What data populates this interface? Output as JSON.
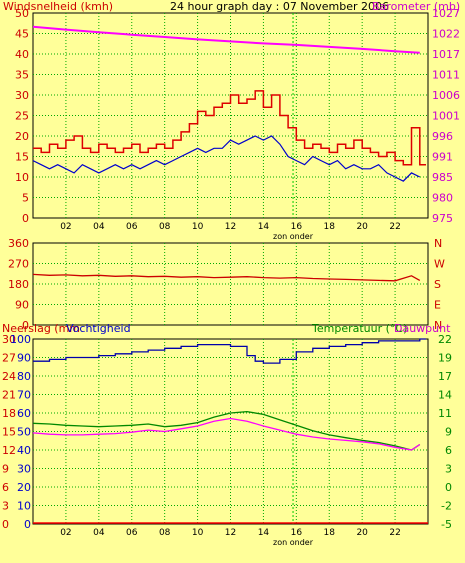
{
  "header": {
    "left_title": "Windsnelheid (kmh)",
    "center_title": "24 hour graph day : 07 November 2006",
    "right_title": "Barometer (mb)"
  },
  "colors": {
    "background": "#ffff99",
    "grid": "#00aa00",
    "wind": "#dd0000",
    "gust": "#0000cc",
    "barometer": "#ff00ff",
    "direction": "#cc0000",
    "humidity": "#0000aa",
    "temperature": "#008800",
    "dewpoint": "#ff00ff",
    "rain": "#ff0000",
    "sun": "#00cc00",
    "axis_text": "#cc0000",
    "baro_text": "#cc00cc"
  },
  "x_ticks": [
    "02",
    "04",
    "06",
    "08",
    "10",
    "12",
    "14",
    "16",
    "18",
    "20",
    "22"
  ],
  "zon_onder_label": "zon onder",
  "chart_data": [
    {
      "type": "line",
      "name": "wind",
      "title": "24 hour graph day : 07 November 2006",
      "ylabel": "Windsnelheid (kmh)",
      "y2label": "Barometer (mb)",
      "x_range": [
        0,
        24
      ],
      "ylim": [
        0,
        50
      ],
      "y_ticks": [
        0,
        5,
        10,
        15,
        20,
        25,
        30,
        35,
        40,
        45,
        50
      ],
      "y2lim": [
        975,
        1027
      ],
      "y2_ticks": [
        975,
        980,
        985,
        991,
        996,
        1001,
        1006,
        1011,
        1017,
        1022,
        1027
      ],
      "grid": true,
      "sun_marker_x": 15.8,
      "series": [
        {
          "axis": "left",
          "x": [
            0,
            0.5,
            1,
            1.5,
            2,
            2.5,
            3,
            3.5,
            4,
            4.5,
            5,
            5.5,
            6,
            6.5,
            7,
            7.5,
            8,
            8.5,
            9,
            9.5,
            10,
            10.5,
            11,
            11.5,
            12,
            12.5,
            13,
            13.5,
            14,
            14.5,
            15,
            15.5,
            16,
            16.5,
            17,
            17.5,
            18,
            18.5,
            19,
            19.5,
            20,
            20.5,
            21,
            21.5,
            22,
            22.5,
            23,
            23.5
          ],
          "values": [
            17,
            16,
            18,
            17,
            19,
            20,
            17,
            16,
            18,
            17,
            16,
            17,
            18,
            16,
            17,
            18,
            17,
            19,
            21,
            23,
            26,
            25,
            27,
            28,
            30,
            28,
            29,
            31,
            27,
            30,
            25,
            22,
            19,
            17,
            18,
            17,
            16,
            18,
            17,
            19,
            17,
            16,
            15,
            16,
            14,
            13,
            22,
            13
          ]
        },
        {
          "axis": "left",
          "x": [
            0,
            0.5,
            1,
            1.5,
            2,
            2.5,
            3,
            3.5,
            4,
            4.5,
            5,
            5.5,
            6,
            6.5,
            7,
            7.5,
            8,
            8.5,
            9,
            9.5,
            10,
            10.5,
            11,
            11.5,
            12,
            12.5,
            13,
            13.5,
            14,
            14.5,
            15,
            15.5,
            16,
            16.5,
            17,
            17.5,
            18,
            18.5,
            19,
            19.5,
            20,
            20.5,
            21,
            21.5,
            22,
            22.5,
            23,
            23.5
          ],
          "values": [
            14,
            13,
            12,
            13,
            12,
            11,
            13,
            12,
            11,
            12,
            13,
            12,
            13,
            12,
            13,
            14,
            13,
            14,
            15,
            16,
            17,
            16,
            17,
            17,
            19,
            18,
            19,
            20,
            19,
            20,
            18,
            15,
            14,
            13,
            15,
            14,
            13,
            14,
            12,
            13,
            12,
            12,
            13,
            11,
            10,
            9,
            11,
            10
          ]
        },
        {
          "axis": "right",
          "x": [
            0,
            2,
            4,
            6,
            8,
            10,
            12,
            14,
            16,
            18,
            20,
            22,
            23.5
          ],
          "values": [
            1023.5,
            1022.8,
            1022.1,
            1021.5,
            1020.9,
            1020.3,
            1019.8,
            1019.3,
            1018.9,
            1018.4,
            1017.9,
            1017.3,
            1016.9
          ]
        }
      ]
    },
    {
      "type": "line",
      "name": "direction",
      "x_range": [
        0,
        24
      ],
      "ylim": [
        0,
        360
      ],
      "y_ticks": [
        0,
        90,
        180,
        270,
        360
      ],
      "y2_labels": [
        "N",
        "W",
        "S",
        "E",
        "N"
      ],
      "grid": true,
      "series": [
        {
          "x": [
            0,
            1,
            2,
            3,
            4,
            5,
            6,
            7,
            8,
            9,
            10,
            11,
            12,
            13,
            14,
            15,
            16,
            17,
            18,
            19,
            20,
            21,
            22,
            23,
            23.5
          ],
          "values": [
            222,
            218,
            220,
            216,
            218,
            214,
            216,
            212,
            214,
            210,
            212,
            208,
            210,
            212,
            208,
            206,
            208,
            204,
            202,
            200,
            198,
            196,
            194,
            216,
            196
          ]
        }
      ]
    },
    {
      "type": "line",
      "name": "weather",
      "labels": {
        "rain": "Neerslag (mm",
        "humidity": "Vochtigheid",
        "temperature": "Temperatuur (°C)",
        "dewpoint": "Dauwpunt"
      },
      "x_range": [
        0,
        24
      ],
      "left_ticks_rain": [
        "0",
        "3",
        "6",
        "9",
        "12",
        "15",
        "18",
        "21",
        "24",
        "27",
        "30"
      ],
      "left_ticks_humidity": [
        "0",
        "10",
        "20",
        "30",
        "40",
        "50",
        "60",
        "70",
        "80",
        "90",
        "100"
      ],
      "y2lim": [
        -5,
        22
      ],
      "y2_ticks": [
        "-5",
        "-2",
        "0",
        "3",
        "6",
        "9",
        "11",
        "14",
        "17",
        "19",
        "22"
      ],
      "grid": true,
      "sun_marker_x": 15.8,
      "series": [
        {
          "key": "humidity",
          "axis": "humidity",
          "ylim": [
            0,
            100
          ],
          "x": [
            0,
            1,
            2,
            3,
            4,
            5,
            6,
            7,
            8,
            9,
            10,
            11,
            12,
            13,
            13.5,
            14,
            15,
            16,
            17,
            18,
            19,
            20,
            21,
            22,
            23,
            23.5
          ],
          "values": [
            88,
            89,
            90,
            90,
            91,
            92,
            93,
            94,
            95,
            96,
            97,
            97,
            96,
            91,
            88,
            87,
            89,
            93,
            95,
            96,
            97,
            98,
            99,
            99,
            99,
            100
          ]
        },
        {
          "key": "temperature",
          "axis": "temperature",
          "ylim": [
            -5,
            22
          ],
          "x": [
            0,
            1,
            2,
            3,
            4,
            5,
            6,
            7,
            8,
            9,
            10,
            11,
            12,
            13,
            14,
            15,
            16,
            17,
            18,
            19,
            20,
            21,
            22,
            23,
            23.5
          ],
          "values": [
            9.7,
            9.6,
            9.4,
            9.3,
            9.2,
            9.3,
            9.4,
            9.6,
            9.2,
            9.4,
            9.8,
            10.6,
            11.2,
            11.4,
            11.0,
            10.2,
            9.4,
            8.6,
            8.0,
            7.6,
            7.2,
            6.9,
            6.4,
            5.8,
            6.6
          ]
        },
        {
          "key": "dewpoint",
          "axis": "temperature",
          "ylim": [
            -5,
            22
          ],
          "x": [
            0,
            1,
            2,
            3,
            4,
            5,
            6,
            7,
            8,
            9,
            10,
            11,
            12,
            13,
            14,
            15,
            16,
            17,
            18,
            19,
            20,
            21,
            22,
            23,
            23.5
          ],
          "values": [
            8.3,
            8.1,
            8.0,
            8.0,
            8.1,
            8.2,
            8.4,
            8.7,
            8.5,
            8.9,
            9.3,
            10.0,
            10.4,
            10.0,
            9.3,
            8.7,
            8.1,
            7.7,
            7.4,
            7.2,
            7.0,
            6.7,
            6.2,
            5.8,
            6.6
          ]
        },
        {
          "key": "rain",
          "axis": "rain",
          "ylim": [
            0,
            30
          ],
          "x": [
            0,
            24
          ],
          "values": [
            0,
            0
          ]
        }
      ]
    }
  ]
}
